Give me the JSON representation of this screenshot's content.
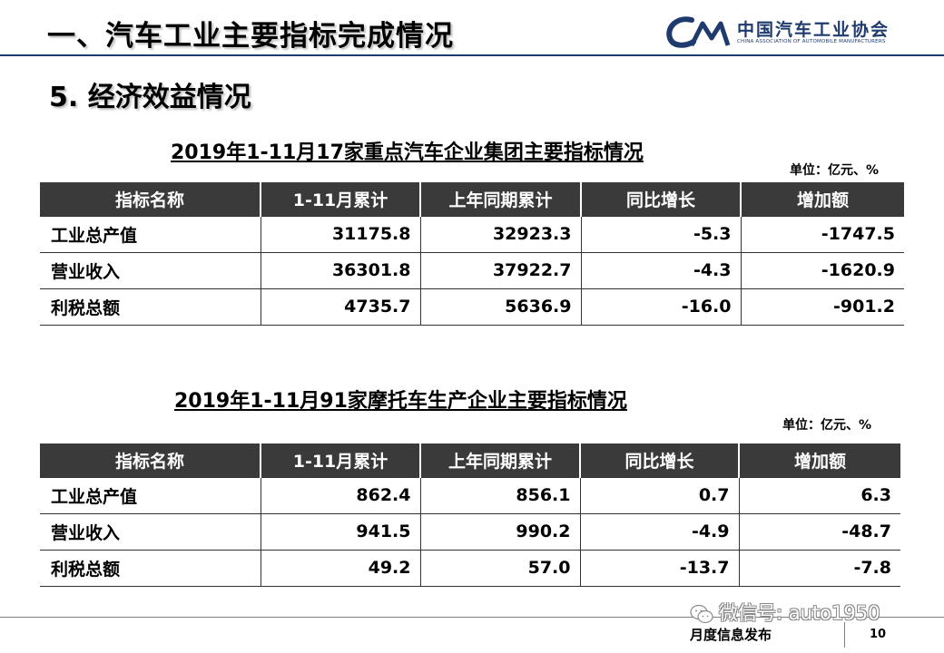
{
  "header": {
    "title": "一、汽车工业主要指标完成情况",
    "logo": {
      "cn": "中国汽车工业协会",
      "en": "CHINA ASSOCIATION OF AUTOMOBILE MANUFACTURERS",
      "color": "#1f3b6e"
    }
  },
  "section_title": "5. 经济效益情况",
  "table1": {
    "title": "2019年1-11月17家重点汽车企业集团主要指标情况",
    "unit": "单位：亿元、%",
    "columns": [
      "指标名称",
      "1-11月累计",
      "上年同期累计",
      "同比增长",
      "增加额"
    ],
    "rows": [
      {
        "name": "工业总产值",
        "cumulative": "31175.8",
        "last_year": "32923.3",
        "growth": "-5.3",
        "increase": "-1747.5"
      },
      {
        "name": "营业收入",
        "cumulative": "36301.8",
        "last_year": "37922.7",
        "growth": "-4.3",
        "increase": "-1620.9"
      },
      {
        "name": "利税总额",
        "cumulative": "4735.7",
        "last_year": "5636.9",
        "growth": "-16.0",
        "increase": "-901.2"
      }
    ]
  },
  "table2": {
    "title": "2019年1-11月91家摩托车生产企业主要指标情况",
    "unit": "单位：亿元、%",
    "columns": [
      "指标名称",
      "1-11月累计",
      "上年同期累计",
      "同比增长",
      "增加额"
    ],
    "rows": [
      {
        "name": "工业总产值",
        "cumulative": "862.4",
        "last_year": "856.1",
        "growth": "0.7",
        "increase": "6.3"
      },
      {
        "name": "营业收入",
        "cumulative": "941.5",
        "last_year": "990.2",
        "growth": "-4.9",
        "increase": "-48.7"
      },
      {
        "name": "利税总额",
        "cumulative": "49.2",
        "last_year": "57.0",
        "growth": "-13.7",
        "increase": "-7.8"
      }
    ]
  },
  "footer": {
    "label": "月度信息发布",
    "page_number": "10",
    "watermark": "微信号: auto1950"
  },
  "colors": {
    "header_bg": "#3a3a3a",
    "accent": "#1f3b6e"
  }
}
